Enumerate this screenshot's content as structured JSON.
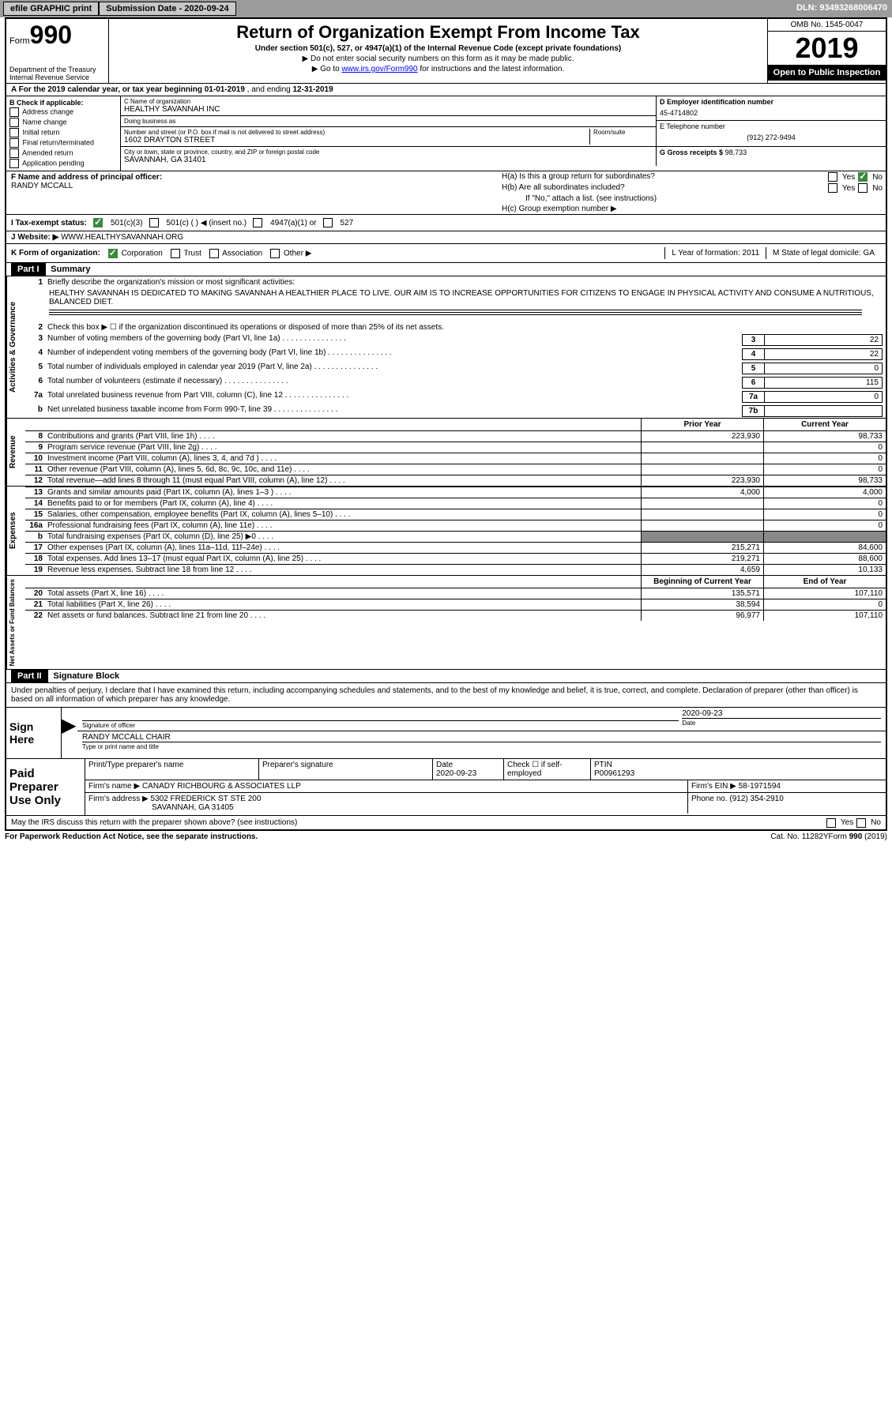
{
  "topbar": {
    "efile": "efile GRAPHIC print",
    "submission": "Submission Date - 2020-09-24",
    "dln": "DLN: 93493268006470"
  },
  "header": {
    "form_prefix": "Form",
    "form_num": "990",
    "dept": "Department of the Treasury\nInternal Revenue Service",
    "title": "Return of Organization Exempt From Income Tax",
    "sub1": "Under section 501(c), 527, or 4947(a)(1) of the Internal Revenue Code (except private foundations)",
    "sub2": "▶ Do not enter social security numbers on this form as it may be made public.",
    "sub3_pre": "▶ Go to ",
    "sub3_link": "www.irs.gov/Form990",
    "sub3_post": " for instructions and the latest information.",
    "omb": "OMB No. 1545-0047",
    "year": "2019",
    "inspection": "Open to Public Inspection"
  },
  "row_a": {
    "label": "A For the 2019 calendar year, or tax year beginning ",
    "begin": "01-01-2019",
    "mid": "  , and ending ",
    "end": "12-31-2019"
  },
  "section_b": {
    "title": "B Check if applicable:",
    "opts": [
      "Address change",
      "Name change",
      "Initial return",
      "Final return/terminated",
      "Amended return",
      "Application pending"
    ]
  },
  "section_c": {
    "name_label": "C Name of organization",
    "name": "HEALTHY SAVANNAH INC",
    "dba_label": "Doing business as",
    "dba": "",
    "addr_label": "Number and street (or P.O. box if mail is not delivered to street address)",
    "room_label": "Room/suite",
    "addr": "1602 DRAYTON STREET",
    "city_label": "City or town, state or province, country, and ZIP or foreign postal code",
    "city": "SAVANNAH, GA  31401"
  },
  "section_d": {
    "ein_label": "D Employer identification number",
    "ein": "45-4714802",
    "tel_label": "E Telephone number",
    "tel": "(912) 272-9494",
    "gross_label": "G Gross receipts $",
    "gross": "98,733"
  },
  "section_f": {
    "label": "F  Name and address of principal officer:",
    "name": "RANDY MCCALL"
  },
  "section_h": {
    "ha": "H(a)  Is this a group return for subordinates?",
    "hb": "H(b)  Are all subordinates included?",
    "hb_note": "If \"No,\" attach a list. (see instructions)",
    "hc": "H(c)  Group exemption number ▶"
  },
  "row_i": {
    "label": "I  Tax-exempt status:",
    "o1": "501(c)(3)",
    "o2": "501(c) (  ) ◀ (insert no.)",
    "o3": "4947(a)(1) or",
    "o4": "527"
  },
  "row_j": {
    "label": "J  Website: ▶",
    "url": "WWW.HEALTHYSAVANNAH.ORG"
  },
  "row_k": {
    "label": "K Form of organization:",
    "opts": [
      "Corporation",
      "Trust",
      "Association",
      "Other ▶"
    ],
    "l": "L Year of formation: 2011",
    "m": "M State of legal domicile: GA"
  },
  "part1": {
    "hdr": "Part I",
    "title": "Summary",
    "l1": "Briefly describe the organization's mission or most significant activities:",
    "mission": "HEALTHY SAVANNAH IS DEDICATED TO MAKING SAVANNAH A HEALTHIER PLACE TO LIVE. OUR AIM IS TO INCREASE OPPORTUNITIES FOR CITIZENS TO ENGAGE IN PHYSICAL ACTIVITY AND CONSUME A NUTRITIOUS, BALANCED DIET.",
    "l2": "Check this box ▶ ☐ if the organization discontinued its operations or disposed of more than 25% of its net assets.",
    "lines_gov": [
      {
        "n": "3",
        "t": "Number of voting members of the governing body (Part VI, line 1a)",
        "box": "3",
        "v": "22"
      },
      {
        "n": "4",
        "t": "Number of independent voting members of the governing body (Part VI, line 1b)",
        "box": "4",
        "v": "22"
      },
      {
        "n": "5",
        "t": "Total number of individuals employed in calendar year 2019 (Part V, line 2a)",
        "box": "5",
        "v": "0"
      },
      {
        "n": "6",
        "t": "Total number of volunteers (estimate if necessary)",
        "box": "6",
        "v": "115"
      },
      {
        "n": "7a",
        "t": "Total unrelated business revenue from Part VIII, column (C), line 12",
        "box": "7a",
        "v": "0"
      },
      {
        "n": "b",
        "t": "Net unrelated business taxable income from Form 990-T, line 39",
        "box": "7b",
        "v": ""
      }
    ],
    "col_hdrs": {
      "prior": "Prior Year",
      "current": "Current Year"
    },
    "revenue": [
      {
        "n": "8",
        "t": "Contributions and grants (Part VIII, line 1h)",
        "p": "223,930",
        "c": "98,733"
      },
      {
        "n": "9",
        "t": "Program service revenue (Part VIII, line 2g)",
        "p": "",
        "c": "0"
      },
      {
        "n": "10",
        "t": "Investment income (Part VIII, column (A), lines 3, 4, and 7d )",
        "p": "",
        "c": "0"
      },
      {
        "n": "11",
        "t": "Other revenue (Part VIII, column (A), lines 5, 6d, 8c, 9c, 10c, and 11e)",
        "p": "",
        "c": "0"
      },
      {
        "n": "12",
        "t": "Total revenue—add lines 8 through 11 (must equal Part VIII, column (A), line 12)",
        "p": "223,930",
        "c": "98,733"
      }
    ],
    "expenses": [
      {
        "n": "13",
        "t": "Grants and similar amounts paid (Part IX, column (A), lines 1–3 )",
        "p": "4,000",
        "c": "4,000"
      },
      {
        "n": "14",
        "t": "Benefits paid to or for members (Part IX, column (A), line 4)",
        "p": "",
        "c": "0"
      },
      {
        "n": "15",
        "t": "Salaries, other compensation, employee benefits (Part IX, column (A), lines 5–10)",
        "p": "",
        "c": "0"
      },
      {
        "n": "16a",
        "t": "Professional fundraising fees (Part IX, column (A), line 11e)",
        "p": "",
        "c": "0"
      },
      {
        "n": "b",
        "t": "Total fundraising expenses (Part IX, column (D), line 25) ▶0",
        "p": "shade",
        "c": "shade"
      },
      {
        "n": "17",
        "t": "Other expenses (Part IX, column (A), lines 11a–11d, 11f–24e)",
        "p": "215,271",
        "c": "84,600"
      },
      {
        "n": "18",
        "t": "Total expenses. Add lines 13–17 (must equal Part IX, column (A), line 25)",
        "p": "219,271",
        "c": "88,600"
      },
      {
        "n": "19",
        "t": "Revenue less expenses. Subtract line 18 from line 12",
        "p": "4,659",
        "c": "10,133"
      }
    ],
    "net_hdrs": {
      "begin": "Beginning of Current Year",
      "end": "End of Year"
    },
    "netassets": [
      {
        "n": "20",
        "t": "Total assets (Part X, line 16)",
        "p": "135,571",
        "c": "107,110"
      },
      {
        "n": "21",
        "t": "Total liabilities (Part X, line 26)",
        "p": "38,594",
        "c": "0"
      },
      {
        "n": "22",
        "t": "Net assets or fund balances. Subtract line 21 from line 20",
        "p": "96,977",
        "c": "107,110"
      }
    ],
    "vlabels": {
      "gov": "Activities & Governance",
      "rev": "Revenue",
      "exp": "Expenses",
      "net": "Net Assets or Fund Balances"
    }
  },
  "part2": {
    "hdr": "Part II",
    "title": "Signature Block",
    "decl": "Under penalties of perjury, I declare that I have examined this return, including accompanying schedules and statements, and to the best of my knowledge and belief, it is true, correct, and complete. Declaration of preparer (other than officer) is based on all information of which preparer has any knowledge.",
    "sign_here": "Sign Here",
    "sig_label": "Signature of officer",
    "date": "2020-09-23",
    "date_label": "Date",
    "officer": "RANDY MCCALL  CHAIR",
    "officer_label": "Type or print name and title",
    "paid": "Paid Preparer Use Only",
    "prep_name_label": "Print/Type preparer's name",
    "prep_sig_label": "Preparer's signature",
    "prep_date_label": "Date",
    "prep_date": "2020-09-23",
    "check_label": "Check ☐ if self-employed",
    "ptin_label": "PTIN",
    "ptin": "P00961293",
    "firm_name_label": "Firm's name    ▶",
    "firm_name": "CANADY RICHBOURG & ASSOCIATES LLP",
    "firm_ein_label": "Firm's EIN ▶",
    "firm_ein": "58-1971594",
    "firm_addr_label": "Firm's address ▶",
    "firm_addr1": "5302 FREDERICK ST STE 200",
    "firm_addr2": "SAVANNAH, GA  31405",
    "phone_label": "Phone no.",
    "phone": "(912) 354-2910",
    "discuss": "May the IRS discuss this return with the preparer shown above? (see instructions)"
  },
  "footer": {
    "left": "For Paperwork Reduction Act Notice, see the separate instructions.",
    "mid": "Cat. No. 11282Y",
    "right_pre": "Form ",
    "right_b": "990",
    "right_post": " (2019)"
  }
}
